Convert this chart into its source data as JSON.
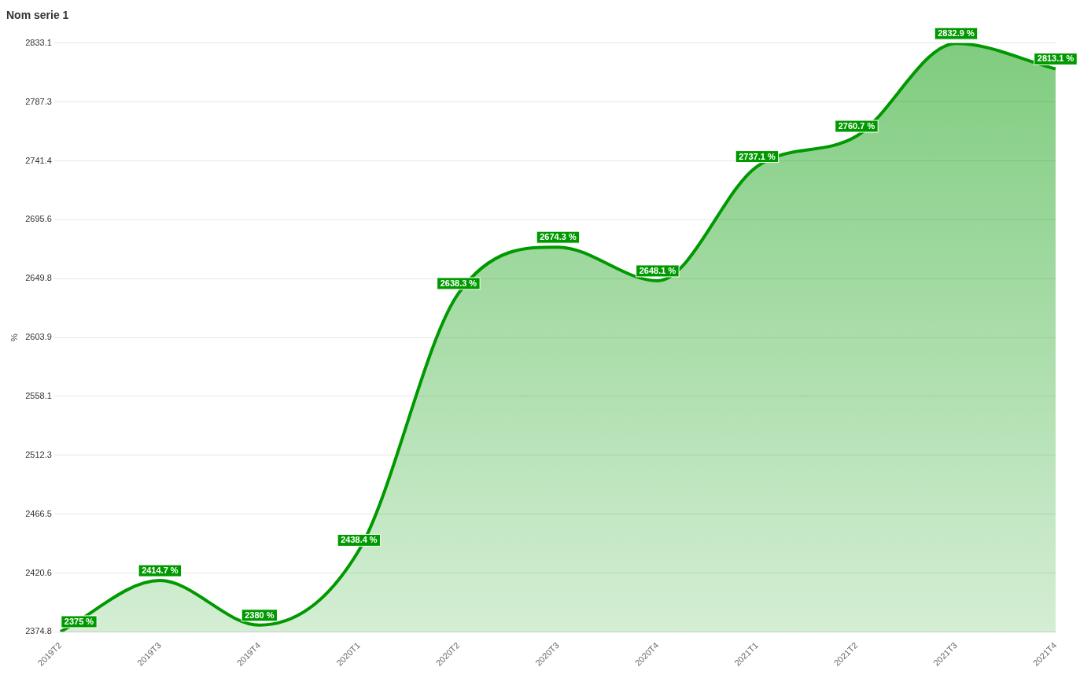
{
  "chart_data": {
    "type": "area",
    "title": "Nom serie 1",
    "ylabel": "%",
    "categories": [
      "2019T2",
      "2019T3",
      "2019T4",
      "2020T1",
      "2020T2",
      "2020T3",
      "2020T4",
      "2021T1",
      "2021T2",
      "2021T3",
      "2021T4"
    ],
    "series": [
      {
        "color": "#009900",
        "values": [
          2375,
          2414.7,
          2380,
          2438.4,
          2638.3,
          2674.3,
          2648.1,
          2737.1,
          2760.7,
          2832.9,
          2813.1
        ],
        "value_labels": [
          "2375 %",
          "2414.7 %",
          "2380 %",
          "2438.4 %",
          "2638.3 %",
          "2674.3 %",
          "2648.1 %",
          "2737.1 %",
          "2760.7 %",
          "2832.9 %",
          "2813.1 %"
        ]
      }
    ],
    "ylim": [
      2374.8,
      2833.1
    ],
    "yticks": [
      2374.8,
      2420.6,
      2466.5,
      2512.3,
      2558.1,
      2603.9,
      2649.8,
      2695.6,
      2741.4,
      2787.3,
      2833.1
    ],
    "grid": "y",
    "legend": false,
    "line_style": "solid"
  }
}
